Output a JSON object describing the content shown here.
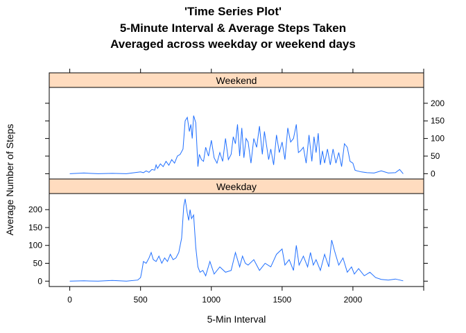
{
  "titles": {
    "line1": "'Time Series Plot'",
    "line2": "5-Minute Interval & Average Steps Taken",
    "line3": "Averaged across weekday or weekend days"
  },
  "chart_data": {
    "type": "line",
    "title": "'Time Series Plot' 5-Minute Interval & Average Steps Taken Averaged across weekday or weekend days",
    "xlabel": "5-Min Interval",
    "ylabel": "Average Number of Steps",
    "xlim": [
      -145,
      2500
    ],
    "ylim": [
      -15,
      245
    ],
    "x_ticks": [
      0,
      500,
      1000,
      1500,
      2000
    ],
    "y_ticks": [
      0,
      50,
      100,
      150,
      200
    ],
    "line_color": "#1f6fff",
    "strip_color": "#ffdcbf",
    "panels": [
      {
        "name": "Weekend",
        "x": [
          0,
          100,
          200,
          300,
          400,
          500,
          520,
          540,
          560,
          580,
          600,
          610,
          620,
          640,
          660,
          680,
          700,
          720,
          740,
          760,
          780,
          800,
          815,
          830,
          845,
          855,
          865,
          875,
          890,
          905,
          915,
          930,
          945,
          960,
          980,
          1000,
          1020,
          1040,
          1060,
          1080,
          1100,
          1120,
          1140,
          1155,
          1170,
          1185,
          1200,
          1215,
          1230,
          1245,
          1260,
          1280,
          1300,
          1320,
          1340,
          1360,
          1375,
          1390,
          1405,
          1420,
          1440,
          1460,
          1480,
          1500,
          1520,
          1540,
          1560,
          1580,
          1600,
          1615,
          1630,
          1650,
          1670,
          1690,
          1710,
          1725,
          1740,
          1755,
          1770,
          1785,
          1800,
          1820,
          1840,
          1860,
          1880,
          1900,
          1920,
          1940,
          1960,
          1980,
          2000,
          2015,
          2030,
          2060,
          2100,
          2150,
          2200,
          2250,
          2300,
          2330,
          2355
        ],
        "values": [
          0,
          2,
          0,
          1,
          0,
          5,
          3,
          8,
          4,
          12,
          10,
          25,
          15,
          28,
          20,
          35,
          24,
          40,
          30,
          50,
          55,
          70,
          150,
          160,
          120,
          140,
          100,
          165,
          145,
          20,
          55,
          40,
          35,
          75,
          50,
          95,
          45,
          30,
          60,
          35,
          100,
          40,
          55,
          105,
          85,
          140,
          50,
          130,
          45,
          100,
          90,
          30,
          100,
          75,
          135,
          55,
          120,
          80,
          40,
          70,
          25,
          110,
          60,
          90,
          40,
          130,
          90,
          100,
          140,
          60,
          65,
          75,
          30,
          110,
          35,
          105,
          60,
          115,
          25,
          65,
          30,
          70,
          25,
          70,
          30,
          60,
          20,
          85,
          75,
          35,
          30,
          10,
          8,
          5,
          3,
          2,
          8,
          2,
          3,
          12,
          0
        ]
      },
      {
        "name": "Weekday",
        "x": [
          0,
          100,
          200,
          300,
          400,
          480,
          500,
          510,
          520,
          540,
          560,
          575,
          590,
          610,
          630,
          650,
          670,
          690,
          710,
          730,
          750,
          770,
          790,
          805,
          815,
          830,
          840,
          850,
          860,
          875,
          890,
          905,
          920,
          940,
          960,
          990,
          1020,
          1060,
          1100,
          1140,
          1170,
          1200,
          1220,
          1240,
          1260,
          1300,
          1340,
          1380,
          1420,
          1460,
          1500,
          1520,
          1550,
          1580,
          1600,
          1620,
          1650,
          1680,
          1700,
          1720,
          1740,
          1770,
          1800,
          1830,
          1850,
          1870,
          1900,
          1930,
          1960,
          1990,
          2010,
          2040,
          2080,
          2120,
          2160,
          2200,
          2250,
          2300,
          2355
        ],
        "values": [
          0,
          1,
          0,
          2,
          0,
          3,
          10,
          30,
          55,
          50,
          65,
          80,
          60,
          55,
          70,
          50,
          65,
          55,
          75,
          60,
          65,
          80,
          120,
          210,
          230,
          190,
          170,
          200,
          175,
          185,
          95,
          40,
          25,
          30,
          15,
          55,
          20,
          40,
          25,
          30,
          80,
          40,
          70,
          50,
          45,
          60,
          30,
          50,
          40,
          75,
          90,
          45,
          60,
          30,
          100,
          45,
          70,
          40,
          80,
          45,
          60,
          30,
          75,
          40,
          115,
          85,
          45,
          65,
          25,
          40,
          20,
          35,
          15,
          25,
          10,
          5,
          3,
          6,
          1
        ]
      }
    ]
  }
}
